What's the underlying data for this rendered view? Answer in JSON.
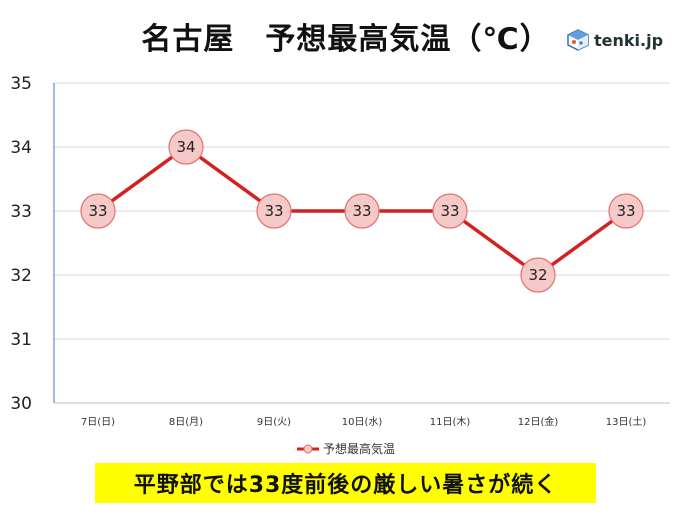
{
  "title": "名古屋　予想最高気温（℃）",
  "logo": {
    "name": "tenki-logo-icon",
    "text": "tenki.jp"
  },
  "banner": "平野部では33度前後の厳しい暑さが続く",
  "colors": {
    "line": "#d32020",
    "marker_fill": "#f6c9c9",
    "marker_stroke": "#e07070",
    "grid": "#d9d9d9",
    "axis": "#4a7ab8",
    "banner_bg": "#ffff00"
  },
  "chart_data": {
    "type": "line",
    "categories": [
      "7日(日)",
      "8日(月)",
      "9日(火)",
      "10日(水)",
      "11日(木)",
      "12日(金)",
      "13日(土)"
    ],
    "series": [
      {
        "name": "予想最高気温",
        "values": [
          33,
          34,
          33,
          33,
          33,
          32,
          33
        ]
      }
    ],
    "ylim": [
      30,
      35
    ],
    "yticks": [
      30,
      31,
      32,
      33,
      34,
      35
    ],
    "grid": true,
    "legend": "bottom"
  }
}
